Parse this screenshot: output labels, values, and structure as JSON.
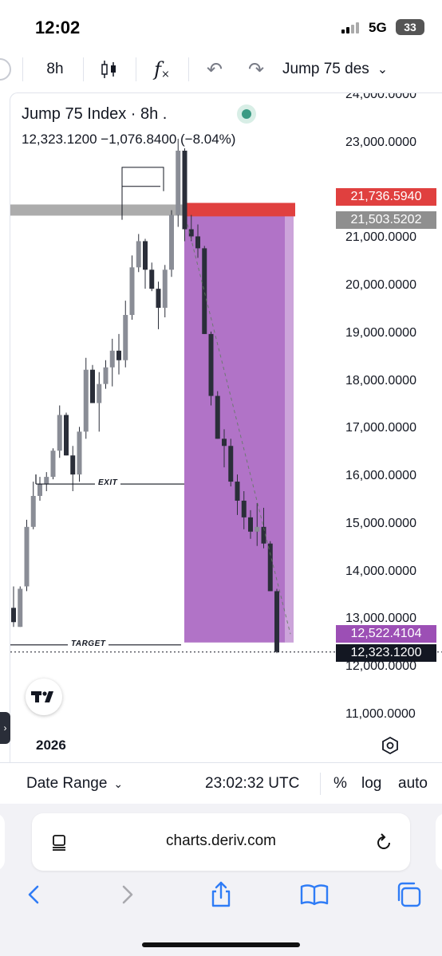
{
  "status": {
    "time": "12:02",
    "network": "5G",
    "battery": "33"
  },
  "toolbar": {
    "interval": "8h",
    "candles_icon": "candlestick-icon",
    "indicators_icon": "fx-icon",
    "indicators_label": "f",
    "undo_icon": "undo-icon",
    "redo_icon": "redo-icon",
    "symbol": "Jump 75 des",
    "symbol_chevron": "chevron-down-icon"
  },
  "legend": {
    "title": "Jump 75 Index · 8h .",
    "values": "12,323.1200  −1,076.8400 (−8.04%)",
    "status_color": "#3b9a83"
  },
  "price_axis": {
    "ticks": [
      "24,000.0000",
      "23,000.0000",
      "21,000.0000",
      "20,000.0000",
      "19,000.0000",
      "18,000.0000",
      "17,000.0000",
      "16,000.0000",
      "15,000.0000",
      "14,000.0000",
      "13,000.0000",
      "12,000.0000",
      "11,000.0000"
    ],
    "tick_values": [
      24000,
      23000,
      21000,
      20000,
      19000,
      18000,
      17000,
      16000,
      15000,
      14000,
      13000,
      12000,
      11000
    ]
  },
  "price_labels": {
    "stop": {
      "text": "21,736.5940",
      "value": 21736.594,
      "color": "#e0403f"
    },
    "entry": {
      "text": "21,503.5202",
      "value": 21503.5202,
      "color": "#8f8f8f"
    },
    "target": {
      "text": "12,522.4104",
      "value": 12522.4104,
      "color": "#9c4fb5"
    },
    "current": {
      "text": "12,323.1200",
      "value": 12323.12,
      "color": "#131722"
    }
  },
  "annotations": {
    "exit": "EXIT",
    "target": "TARGET",
    "exit_level": 15850,
    "target_level": 12522.4104
  },
  "chart_data": {
    "type": "candlestick",
    "title": "Jump 75 Index · 8h .",
    "yrange": [
      10800,
      24000
    ],
    "short_position": {
      "entry": 21503.52,
      "stop": 21736.59,
      "target": 12522.41,
      "fill_color": "#a35bbd",
      "stop_color": "#e0403f"
    },
    "candles": [
      [
        13250,
        13700,
        12950,
        12850
      ],
      [
        12850,
        12900,
        13650,
        13700
      ],
      [
        13700,
        13600,
        14950,
        15100
      ],
      [
        14950,
        14900,
        15600,
        15900
      ],
      [
        15600,
        15500,
        15850,
        16000
      ],
      [
        15850,
        15700,
        16000,
        16100
      ],
      [
        16000,
        15950,
        16550,
        16600
      ],
      [
        16550,
        16400,
        17300,
        17500
      ],
      [
        17300,
        16850,
        16450,
        17350
      ],
      [
        16450,
        15700,
        16050,
        16650
      ],
      [
        16050,
        15900,
        16950,
        17050
      ],
      [
        16950,
        16800,
        18250,
        18500
      ],
      [
        18250,
        17800,
        17550,
        18350
      ],
      [
        17550,
        16950,
        17950,
        18200
      ],
      [
        17950,
        17850,
        18300,
        18450
      ],
      [
        18300,
        17900,
        18650,
        18900
      ],
      [
        18650,
        18150,
        18450,
        19000
      ],
      [
        18450,
        18300,
        19400,
        19700
      ],
      [
        19400,
        19300,
        20400,
        20650
      ],
      [
        20400,
        20300,
        20950,
        21100
      ],
      [
        20950,
        19950,
        20350,
        21000
      ],
      [
        20350,
        19900,
        19950,
        20500
      ],
      [
        19950,
        19100,
        19550,
        20100
      ],
      [
        19550,
        19350,
        20350,
        20450
      ],
      [
        20350,
        20200,
        21500,
        21600
      ],
      [
        21500,
        21250,
        22850,
        23100
      ],
      [
        22850,
        20950,
        21200,
        22900
      ],
      [
        21200,
        20950,
        21050,
        21500
      ],
      [
        21050,
        20600,
        20800,
        21300
      ],
      [
        20800,
        20200,
        19000,
        20850
      ],
      [
        19000,
        17500,
        17700,
        19050
      ],
      [
        17700,
        16900,
        16800,
        17800
      ],
      [
        16800,
        16200,
        16650,
        17000
      ],
      [
        16650,
        15800,
        15900,
        16800
      ],
      [
        15900,
        15200,
        15500,
        16050
      ],
      [
        15500,
        14900,
        15150,
        15700
      ],
      [
        15150,
        14700,
        14850,
        15300
      ],
      [
        14850,
        14550,
        14950,
        15450
      ],
      [
        14950,
        14500,
        14600,
        15350
      ],
      [
        14600,
        14200,
        13600,
        14650
      ],
      [
        13600,
        12300,
        12323,
        13650
      ]
    ]
  },
  "chart_footer": {
    "year": "2026",
    "logo_icon": "tradingview-logo-icon",
    "settings_icon": "settings-hexagon-icon"
  },
  "bottom_bar": {
    "date_range": "Date Range",
    "utc_time": "23:02:32 UTC",
    "percent": "%",
    "log": "log",
    "auto": "auto"
  },
  "browser": {
    "url": "charts.deriv.com"
  }
}
